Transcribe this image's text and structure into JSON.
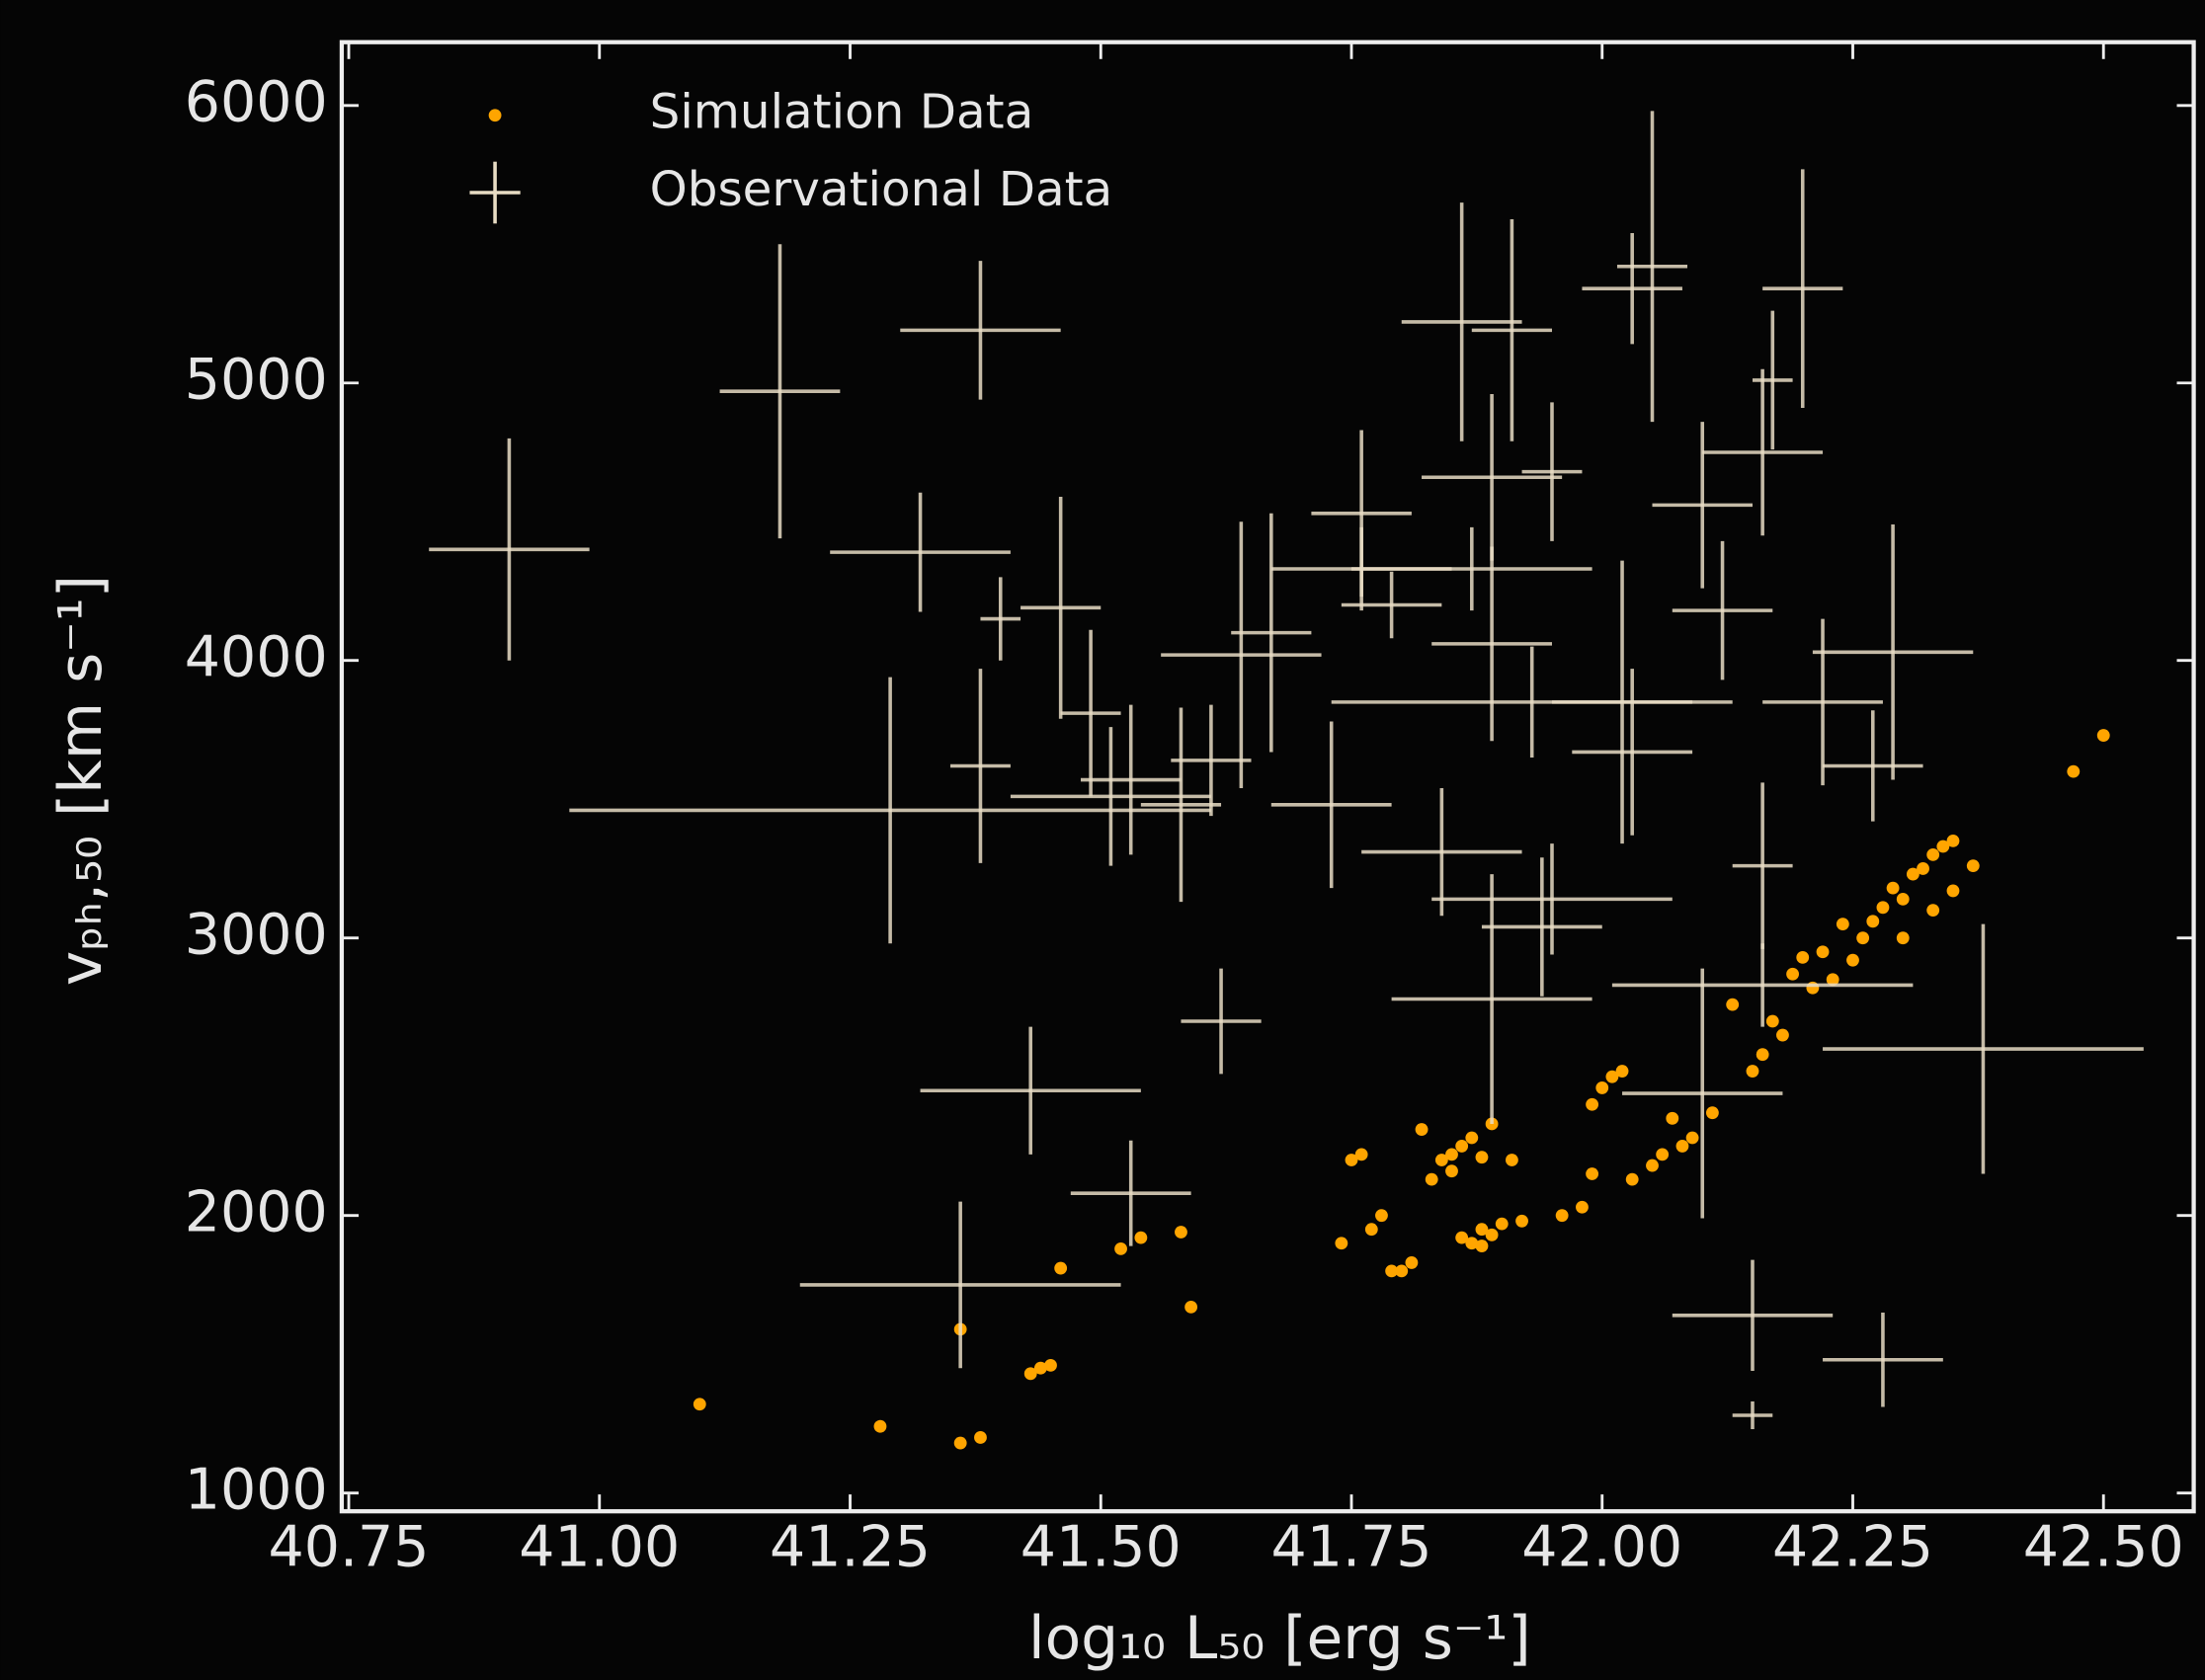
{
  "chart_data": {
    "type": "scatter",
    "xlabel": "log₁₀ L₅₀ [erg s⁻¹]",
    "ylabel": "vₚₕ,₅₀ [km s⁻¹]",
    "xlim": [
      40.743,
      42.59
    ],
    "ylim": [
      934,
      6228
    ],
    "xticks": [
      40.75,
      {
        "value": 41,
        "label": "41.00"
      },
      41.25,
      {
        "value": 41.5,
        "label": "41.50"
      },
      41.75,
      {
        "value": 42,
        "label": "42.00"
      },
      42.25,
      {
        "value": 42.5,
        "label": "42.50"
      }
    ],
    "yticks": [
      1000,
      2000,
      3000,
      4000,
      5000,
      6000
    ],
    "legend": "upper left",
    "series": [
      {
        "name": "Simulation Data",
        "color": "#ffa500",
        "x": [
          41.1,
          41.28,
          41.36,
          41.38,
          41.36,
          41.43,
          41.44,
          41.45,
          41.46,
          41.52,
          41.54,
          41.58,
          41.59,
          41.74,
          41.75,
          41.76,
          41.77,
          41.78,
          41.79,
          41.8,
          41.81,
          41.82,
          41.83,
          41.84,
          41.85,
          41.86,
          41.86,
          41.87,
          41.87,
          41.88,
          41.88,
          41.89,
          41.89,
          41.9,
          41.91,
          41.92,
          41.85,
          41.88,
          41.96,
          41.98,
          41.99,
          41.99,
          42.0,
          42.01,
          42.02,
          42.03,
          42.05,
          42.06,
          42.07,
          42.08,
          42.09,
          42.11,
          42.13,
          42.15,
          42.16,
          42.17,
          42.18,
          42.19,
          42.2,
          42.21,
          42.23,
          42.25,
          42.26,
          42.27,
          42.28,
          42.29,
          42.3,
          42.31,
          42.32,
          42.33,
          42.34,
          42.35,
          42.3,
          42.33,
          42.35,
          42.37,
          42.47,
          42.5,
          42.22,
          42.24
        ],
        "y": [
          1320,
          1240,
          1180,
          1200,
          1590,
          1430,
          1450,
          1460,
          1810,
          1880,
          1920,
          1940,
          1670,
          1900,
          2200,
          2220,
          1950,
          2000,
          1800,
          1800,
          1830,
          2310,
          2130,
          2200,
          2220,
          2250,
          1920,
          1900,
          2280,
          1950,
          2210,
          1930,
          2330,
          1970,
          2200,
          1980,
          2160,
          1890,
          2000,
          2030,
          2150,
          2400,
          2460,
          2500,
          2520,
          2130,
          2180,
          2220,
          2350,
          2250,
          2280,
          2370,
          2760,
          2520,
          2580,
          2700,
          2650,
          2870,
          2930,
          2820,
          2850,
          2920,
          3000,
          3060,
          3110,
          3180,
          3140,
          3230,
          3250,
          3300,
          3330,
          3350,
          3000,
          3100,
          3170,
          3260,
          3600,
          3730,
          2950,
          3050
        ]
      },
      {
        "name": "Observational Data",
        "color": "#e8dcc4",
        "x": [
          40.91,
          41.18,
          41.38,
          41.32,
          41.4,
          41.46,
          41.29,
          41.38,
          41.49,
          41.51,
          41.53,
          41.58,
          41.61,
          41.62,
          41.43,
          41.53,
          41.36,
          41.64,
          41.67,
          41.73,
          41.76,
          41.79,
          41.76,
          41.86,
          41.91,
          42.05,
          42.03,
          42.2,
          42.17,
          42.1,
          42.16,
          41.89,
          41.95,
          42.12,
          42.02,
          41.93,
          42.03,
          42.22,
          42.29,
          42.27,
          41.84,
          41.89,
          41.95,
          41.94,
          42.38,
          42.16,
          42.1,
          42.15,
          42.28,
          42.15,
          42.16,
          41.89,
          41.87
        ],
        "y": [
          4400,
          4970,
          5190,
          4390,
          4150,
          4190,
          3460,
          3620,
          3810,
          3510,
          3570,
          3480,
          3640,
          2700,
          2450,
          2080,
          1750,
          4020,
          4100,
          3480,
          4530,
          4200,
          4330,
          5220,
          5190,
          5420,
          5340,
          5340,
          5010,
          4560,
          4750,
          4660,
          4680,
          4180,
          3850,
          3850,
          3670,
          3850,
          4030,
          3620,
          3310,
          2780,
          3140,
          3040,
          2600,
          2830,
          2440,
          1640,
          1480,
          1280,
          3260,
          4060,
          4330
        ],
        "xerr": [
          0.08,
          0.06,
          0.08,
          0.09,
          0.02,
          0.04,
          0.32,
          0.03,
          0.03,
          0.1,
          0.05,
          0.04,
          0.04,
          0.04,
          0.11,
          0.06,
          0.16,
          0.08,
          0.04,
          0.06,
          0.05,
          0.05,
          0.09,
          0.06,
          0.04,
          0.035,
          0.05,
          0.04,
          0.02,
          0.05,
          0.06,
          0.07,
          0.03,
          0.05,
          0.07,
          0.2,
          0.06,
          0.06,
          0.08,
          0.05,
          0.08,
          0.1,
          0.12,
          0.06,
          0.16,
          0.15,
          0.08,
          0.08,
          0.06,
          0.02,
          0.03,
          0.06,
          0.12
        ],
        "yerr": [
          400,
          530,
          250,
          215,
          150,
          400,
          480,
          350,
          300,
          250,
          270,
          350,
          200,
          190,
          230,
          190,
          300,
          480,
          430,
          300,
          300,
          120,
          150,
          430,
          400,
          560,
          200,
          430,
          250,
          300,
          300,
          300,
          250,
          250,
          510,
          200,
          300,
          300,
          460,
          200,
          230,
          450,
          200,
          250,
          450,
          150,
          450,
          200,
          170,
          50,
          300,
          350,
          150
        ]
      }
    ]
  }
}
